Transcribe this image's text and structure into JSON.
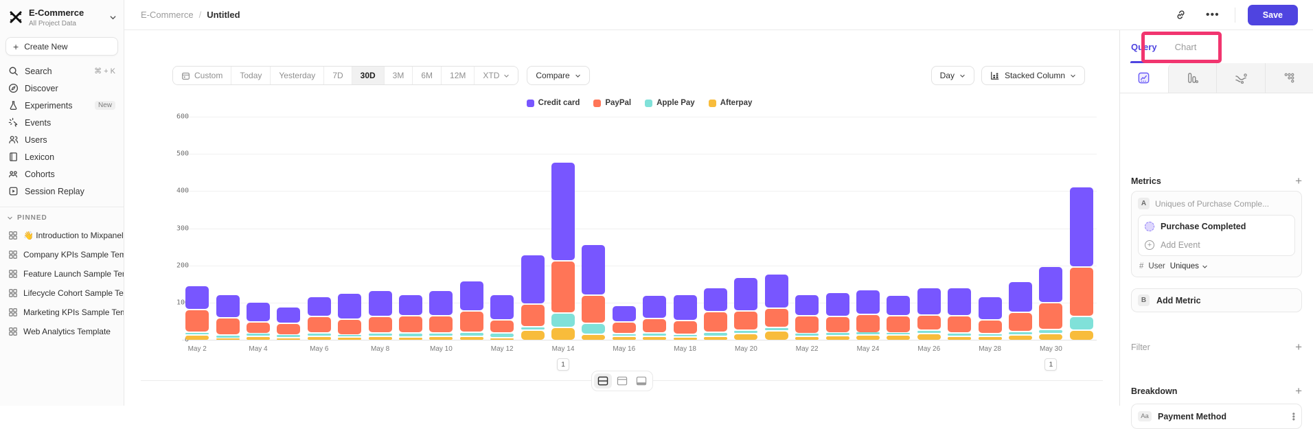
{
  "colors": {
    "accent": "#4F44E0",
    "highlight_box": "#F1356F"
  },
  "sidebar": {
    "project_name": "E-Commerce",
    "project_scope": "All Project Data",
    "create_new_label": "Create New",
    "nav": [
      {
        "label": "Search",
        "icon": "search-icon",
        "shortcut": "⌘ + K"
      },
      {
        "label": "Discover",
        "icon": "discover-icon"
      },
      {
        "label": "Experiments",
        "icon": "experiments-icon",
        "badge": "New"
      },
      {
        "label": "Events",
        "icon": "events-icon"
      },
      {
        "label": "Users",
        "icon": "users-icon"
      },
      {
        "label": "Lexicon",
        "icon": "lexicon-icon"
      },
      {
        "label": "Cohorts",
        "icon": "cohorts-icon"
      },
      {
        "label": "Session Replay",
        "icon": "session-replay-icon"
      }
    ],
    "pinned_header": "PINNED",
    "pinned": [
      "👋 Introduction to Mixpanel Bo",
      "Company KPIs Sample Templat",
      "Feature Launch Sample Templa",
      "Lifecycle Cohort Sample Temp",
      "Marketing KPIs Sample Templat",
      "Web Analytics Template"
    ]
  },
  "breadcrumb": {
    "parent": "E-Commerce",
    "separator": "/",
    "current": "Untitled"
  },
  "topbar": {
    "more_label": "•••",
    "save_label": "Save"
  },
  "toolbar": {
    "date_ranges": [
      "Custom",
      "Today",
      "Yesterday",
      "7D",
      "30D",
      "3M",
      "6M",
      "12M",
      "XTD"
    ],
    "active_range": "30D",
    "compare_label": "Compare",
    "granularity": "Day",
    "chart_type": "Stacked Column"
  },
  "annotations": [
    {
      "index": 12,
      "label": "1"
    },
    {
      "index": 28,
      "label": "1"
    }
  ],
  "chart_data": {
    "type": "bar",
    "stacked": true,
    "categories": [
      "May 2",
      "May 3",
      "May 4",
      "May 5",
      "May 6",
      "May 7",
      "May 8",
      "May 9",
      "May 10",
      "May 11",
      "May 12",
      "May 13",
      "May 14",
      "May 15",
      "May 16",
      "May 17",
      "May 18",
      "May 19",
      "May 20",
      "May 21",
      "May 22",
      "May 23",
      "May 24",
      "May 25",
      "May 26",
      "May 27",
      "May 28",
      "May 29",
      "May 30",
      "May 31"
    ],
    "series": [
      {
        "name": "Credit card",
        "color": "#7856FF",
        "values": [
          65,
          63,
          54,
          45,
          55,
          70,
          69,
          58,
          68,
          80,
          68,
          134,
          266,
          137,
          45,
          63,
          69,
          66,
          90,
          94,
          57,
          65,
          67,
          55,
          73,
          76,
          63,
          82,
          98,
          215
        ]
      },
      {
        "name": "PayPal",
        "color": "#FF7557",
        "values": [
          61,
          46,
          31,
          31,
          43,
          43,
          44,
          46,
          45,
          58,
          34,
          60,
          140,
          74,
          31,
          39,
          37,
          55,
          52,
          51,
          49,
          43,
          49,
          45,
          42,
          45,
          37,
          52,
          71,
          134
        ]
      },
      {
        "name": "Apple Pay",
        "color": "#80E1D9",
        "values": [
          8,
          9,
          6,
          7,
          9,
          6,
          9,
          11,
          9,
          10,
          14,
          10,
          38,
          31,
          8,
          9,
          8,
          10,
          9,
          9,
          6,
          8,
          6,
          7,
          9,
          9,
          8,
          10,
          11,
          37
        ]
      },
      {
        "name": "Afterpay",
        "color": "#F8BC3B",
        "values": [
          14,
          6,
          12,
          8,
          12,
          9,
          12,
          9,
          12,
          12,
          7,
          27,
          36,
          16,
          11,
          11,
          9,
          12,
          18,
          26,
          12,
          13,
          15,
          14,
          18,
          12,
          11,
          14,
          19,
          27
        ]
      }
    ],
    "stack_order_bottom_to_top": [
      "Afterpay",
      "Apple Pay",
      "PayPal",
      "Credit card"
    ],
    "ylim": [
      0,
      600
    ],
    "yticks": [
      0,
      100,
      200,
      300,
      400,
      500,
      600
    ],
    "x_tick_every": 2,
    "legend_position": "top",
    "grid": true
  },
  "right_panel": {
    "tabs": {
      "query": "Query",
      "chart": "Chart"
    },
    "active_tab": "Query",
    "metrics_header": "Metrics",
    "metric_a": {
      "badge": "A",
      "placeholder": "Uniques of Purchase Comple...",
      "event": "Purchase Completed",
      "add_event_label": "Add Event",
      "measure_symbol": "#",
      "measure_entity": "User",
      "measure_type": "Uniques"
    },
    "metric_b": {
      "badge": "B",
      "label": "Add Metric"
    },
    "filter_header": "Filter",
    "breakdown_header": "Breakdown",
    "breakdown_item": {
      "badge": "Aa",
      "label": "Payment Method"
    }
  }
}
